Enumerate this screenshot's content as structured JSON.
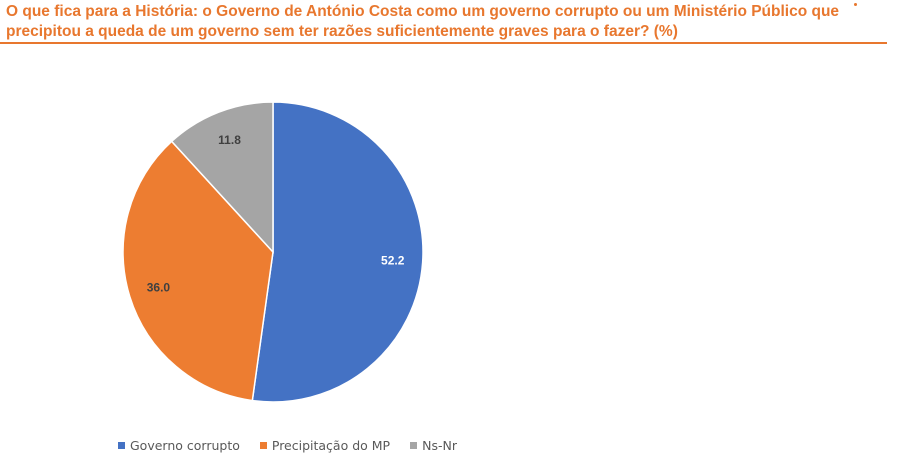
{
  "title": "O que fica para a História: o Governo de António Costa como um governo corrupto ou um Ministério Público que precipitou a queda de um governo sem ter razões suficientemente graves para o fazer? (%)",
  "chart_data": {
    "type": "pie",
    "title": "O que fica para a História: o Governo de António Costa como um governo corrupto ou um Ministério Público que precipitou a queda de um governo sem ter razões suficientemente graves para o fazer? (%)",
    "categories": [
      "Governo corrupto",
      "Precipitação do MP",
      "Ns-Nr"
    ],
    "values": [
      52.2,
      36.0,
      11.8
    ],
    "value_labels": [
      "52.2",
      "36.0",
      "11.8"
    ],
    "colors": [
      "#4472c4",
      "#ed7d31",
      "#a5a5a5"
    ],
    "label_colors": [
      "#ffffff",
      "#404040",
      "#404040"
    ],
    "legend": "bottom-left"
  }
}
